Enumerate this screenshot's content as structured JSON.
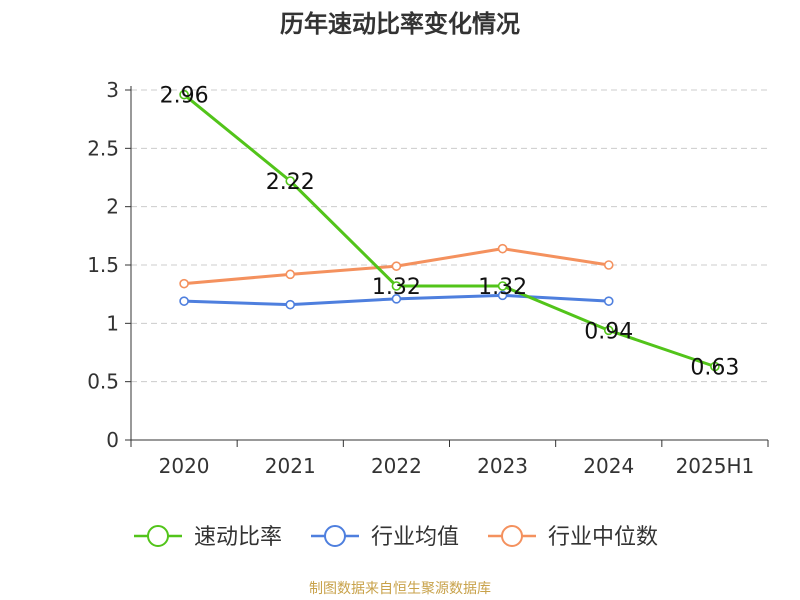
{
  "chart_data": {
    "type": "line",
    "title": "历年速动比率变化情况",
    "categories": [
      "2020",
      "2021",
      "2022",
      "2023",
      "2024",
      "2025H1"
    ],
    "y_ticks": [
      "0",
      "0.5",
      "1",
      "1.5",
      "2",
      "2.5",
      "3"
    ],
    "ylim": [
      0,
      3
    ],
    "grid": true,
    "legend_position": "bottom",
    "series": [
      {
        "name": "速动比率",
        "color": "#52c41a",
        "values": [
          2.96,
          2.22,
          1.32,
          1.32,
          0.94,
          0.63
        ],
        "labels": [
          "2.96",
          "2.22",
          "1.32",
          "1.32",
          "0.94",
          "0.63"
        ]
      },
      {
        "name": "行业均值",
        "color": "#4e7fde",
        "values": [
          1.19,
          1.16,
          1.21,
          1.24,
          1.19,
          null
        ]
      },
      {
        "name": "行业中位数",
        "color": "#f4915e",
        "values": [
          1.34,
          1.42,
          1.49,
          1.64,
          1.5,
          null
        ]
      }
    ]
  },
  "source_note": "制图数据来自恒生聚源数据库"
}
